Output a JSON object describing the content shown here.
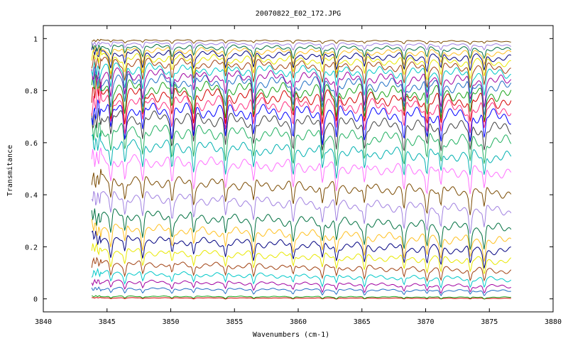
{
  "chart_data": {
    "type": "line",
    "title": "20070822_E02_172.JPG",
    "xlabel": "Wavenumbers (cm-1)",
    "ylabel": "Transmitance",
    "xlim": [
      3840,
      3880
    ],
    "ylim": [
      -0.05,
      1.05
    ],
    "x_ticks": [
      "3840",
      "3845",
      "3850",
      "3855",
      "3860",
      "3865",
      "3870",
      "3875",
      "3880"
    ],
    "y_ticks": [
      "0",
      "0.2",
      "0.4",
      "0.6",
      "0.8",
      "1"
    ],
    "grid": false,
    "legend": "none",
    "x_range_of_data": [
      3843.8,
      3876.7
    ],
    "absorption_lines": [
      3845.3,
      3846.4,
      3847.8,
      3850.1,
      3851.8,
      3854.3,
      3856.5,
      3859.6,
      3861.9,
      3863.0,
      3865.2,
      3868.3,
      3870.1,
      3871.2,
      3873.5,
      3874.6
    ],
    "series_colors": [
      "#d40000",
      "#1aa31a",
      "#1f6fc4",
      "#a000a0",
      "#00c8c8",
      "#a04010",
      "#e8e800",
      "#000080",
      "#ffc020",
      "#007040",
      "#a080e0",
      "#7a4a00",
      "#ff70ff",
      "#00b0b0",
      "#20b060",
      "#404040",
      "#0000ff",
      "#ff3080"
    ],
    "series": [
      {
        "baseline_start": 0.005,
        "baseline_end": 0.003,
        "depth": 0.002
      },
      {
        "baseline_start": 0.012,
        "baseline_end": 0.008,
        "depth": 0.004
      },
      {
        "baseline_start": 0.045,
        "baseline_end": 0.035,
        "depth": 0.01
      },
      {
        "baseline_start": 0.075,
        "baseline_end": 0.055,
        "depth": 0.015
      },
      {
        "baseline_start": 0.11,
        "baseline_end": 0.085,
        "depth": 0.02
      },
      {
        "baseline_start": 0.15,
        "baseline_end": 0.12,
        "depth": 0.025
      },
      {
        "baseline_start": 0.2,
        "baseline_end": 0.16,
        "depth": 0.03
      },
      {
        "baseline_start": 0.25,
        "baseline_end": 0.2,
        "depth": 0.035
      },
      {
        "baseline_start": 0.295,
        "baseline_end": 0.24,
        "depth": 0.04
      },
      {
        "baseline_start": 0.35,
        "baseline_end": 0.29,
        "depth": 0.045
      },
      {
        "baseline_start": 0.42,
        "baseline_end": 0.36,
        "depth": 0.045
      },
      {
        "baseline_start": 0.48,
        "baseline_end": 0.43,
        "depth": 0.045
      },
      {
        "baseline_start": 0.56,
        "baseline_end": 0.51,
        "depth": 0.05
      },
      {
        "baseline_start": 0.62,
        "baseline_end": 0.57,
        "depth": 0.05
      },
      {
        "baseline_start": 0.68,
        "baseline_end": 0.63,
        "depth": 0.055
      },
      {
        "baseline_start": 0.73,
        "baseline_end": 0.68,
        "depth": 0.055
      },
      {
        "baseline_start": 0.76,
        "baseline_end": 0.73,
        "depth": 0.06
      },
      {
        "baseline_start": 0.79,
        "baseline_end": 0.76,
        "depth": 0.06
      },
      {
        "baseline_start": 0.82,
        "baseline_end": 0.79,
        "depth": 0.06
      },
      {
        "baseline_start": 0.845,
        "baseline_end": 0.815,
        "depth": 0.06
      },
      {
        "baseline_start": 0.87,
        "baseline_end": 0.84,
        "depth": 0.055
      },
      {
        "baseline_start": 0.89,
        "baseline_end": 0.86,
        "depth": 0.05
      },
      {
        "baseline_start": 0.91,
        "baseline_end": 0.885,
        "depth": 0.045
      },
      {
        "baseline_start": 0.93,
        "baseline_end": 0.905,
        "depth": 0.04
      },
      {
        "baseline_start": 0.945,
        "baseline_end": 0.925,
        "depth": 0.035
      },
      {
        "baseline_start": 0.96,
        "baseline_end": 0.94,
        "depth": 0.03
      },
      {
        "baseline_start": 0.97,
        "baseline_end": 0.955,
        "depth": 0.025
      },
      {
        "baseline_start": 0.98,
        "baseline_end": 0.968,
        "depth": 0.02
      },
      {
        "baseline_start": 0.99,
        "baseline_end": 0.98,
        "depth": 0.012
      },
      {
        "baseline_start": 0.997,
        "baseline_end": 0.992,
        "depth": 0.006
      }
    ]
  }
}
